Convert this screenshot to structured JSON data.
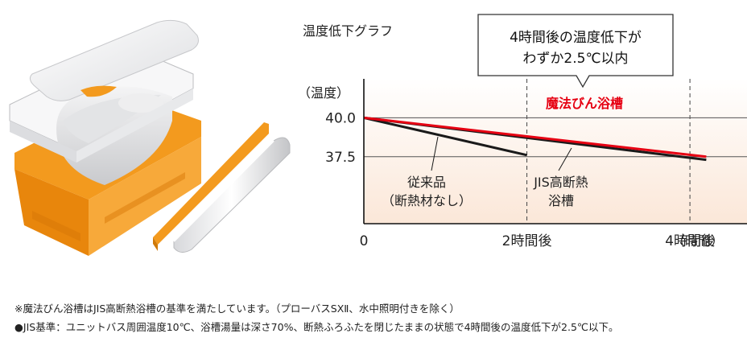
{
  "illustration": {
    "name": "bathtub-with-insulation-illustration"
  },
  "chart_data": {
    "type": "line",
    "title": "温度低下グラフ",
    "ylabel": "（温度）",
    "xlabel": "（時間）",
    "x_ticks": [
      {
        "value": 0,
        "label": "0"
      },
      {
        "value": 2,
        "label": "2時間後"
      },
      {
        "value": 4,
        "label": "4時間後"
      }
    ],
    "y_ticks": [
      {
        "value": 40.0,
        "label": "40.0"
      },
      {
        "value": 37.5,
        "label": "37.5"
      }
    ],
    "xlim": [
      0,
      4.7
    ],
    "ylim": [
      33.2,
      42.5
    ],
    "grid": "dashed vertical at 2h and 4h, solid horizontal at 40.0 and 37.5",
    "series": [
      {
        "name": "魔法びん浴槽",
        "color": "#e60012",
        "points": [
          [
            0,
            40.0
          ],
          [
            4.2,
            37.5
          ]
        ]
      },
      {
        "name": "JIS高断熱浴槽",
        "label_lines": [
          "JIS高断熱",
          "浴槽"
        ],
        "color": "#1a1a1a",
        "points": [
          [
            0,
            40.0
          ],
          [
            4.2,
            37.3
          ]
        ]
      },
      {
        "name": "従来品（断熱材なし）",
        "label_lines": [
          "従来品",
          "（断熱材なし）"
        ],
        "color": "#1a1a1a",
        "points": [
          [
            0,
            40.0
          ],
          [
            2.0,
            37.6
          ]
        ]
      }
    ],
    "callout": {
      "lines": [
        "4時間後の温度低下が",
        "わずか2.5℃以内"
      ]
    }
  },
  "footnotes": [
    "※魔法びん浴槽はJIS高断熱浴槽の基準を満たしています。（プローバスSXⅡ、水中照明付きを除く）",
    "●JIS基準：ユニットバス周囲温度10℃、浴槽湯量は深さ70%、断熱ふろふたを閉じたままの状態で4時間後の温度低下が2.5℃以下。"
  ]
}
